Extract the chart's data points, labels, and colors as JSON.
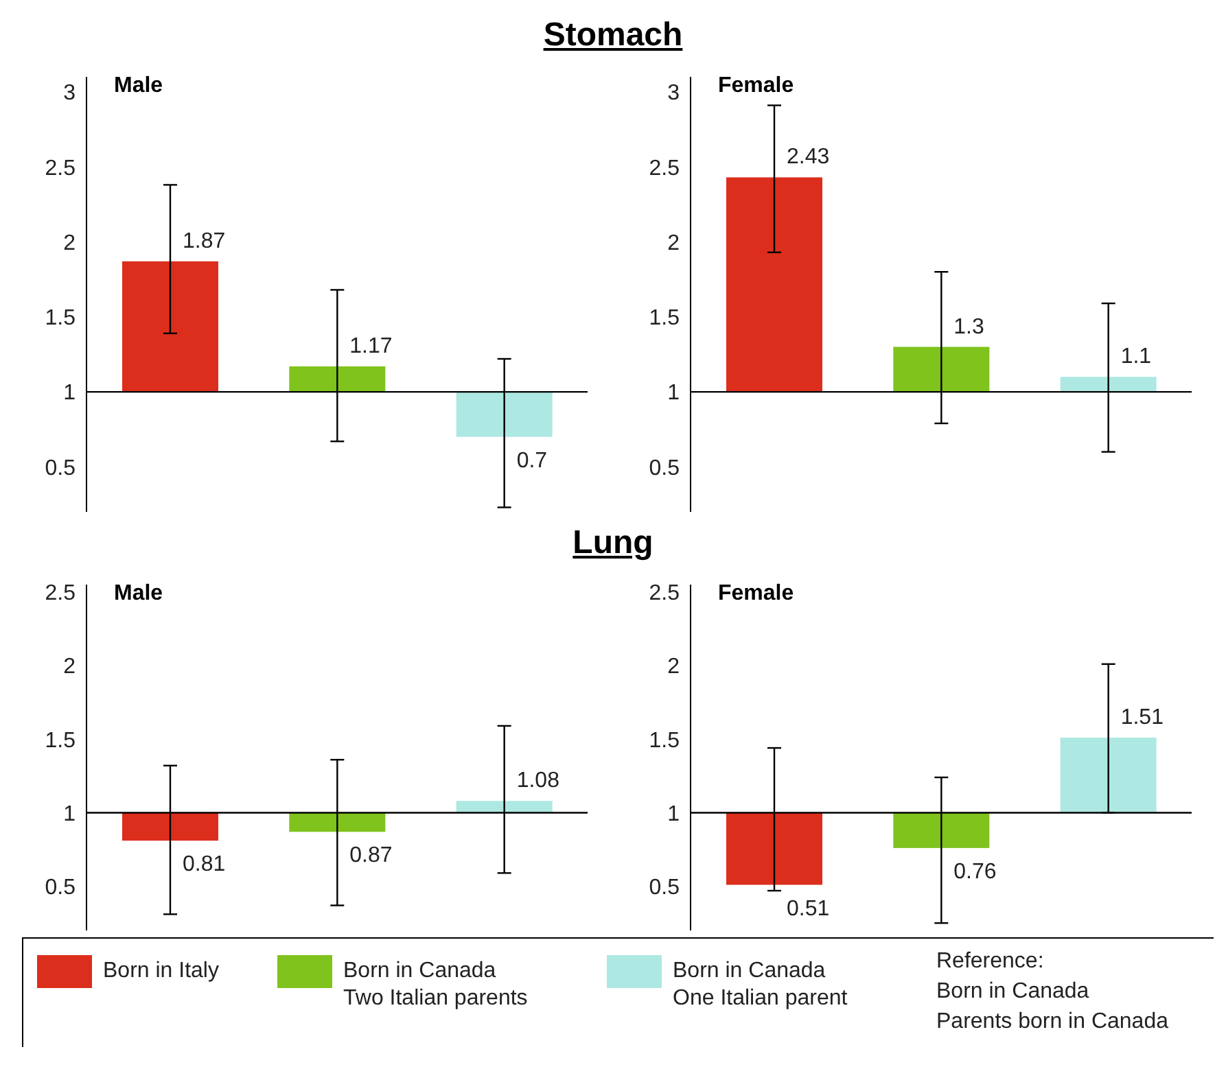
{
  "chart_data": [
    {
      "type": "bar",
      "title": "Stomach",
      "subtitle": "Male",
      "categories": [
        null,
        null,
        null
      ],
      "ylim": [
        0.2,
        3.1
      ],
      "yticks": [
        0.5,
        1,
        1.5,
        2,
        2.5,
        3
      ],
      "ref_lines": [
        {
          "axis": "y",
          "value": 1
        }
      ],
      "series": [
        {
          "color": "#dc2e1c",
          "base": [
            1,
            null,
            null
          ],
          "values": [
            0.87,
            null,
            null
          ],
          "value_labels": [
            "1.87",
            null,
            null
          ],
          "errors": [
            [
              1.39,
              2.38
            ],
            null,
            null
          ]
        },
        {
          "color": "#7fc31c",
          "base": [
            null,
            1,
            null
          ],
          "values": [
            null,
            0.17,
            null
          ],
          "value_labels": [
            null,
            "1.17",
            null
          ],
          "errors": [
            null,
            [
              0.67,
              1.68
            ],
            null
          ]
        },
        {
          "color": "#aee8e2",
          "base": [
            null,
            null,
            1
          ],
          "values": [
            null,
            null,
            -0.3
          ],
          "value_labels": [
            null,
            null,
            "0.7"
          ],
          "errors": [
            null,
            null,
            [
              0.23,
              1.22
            ]
          ]
        }
      ]
    },
    {
      "type": "bar",
      "subtitle": "Female",
      "categories": [
        null,
        null,
        null
      ],
      "ylim": [
        0.2,
        3.1
      ],
      "yticks": [
        0.5,
        1,
        1.5,
        2,
        2.5,
        3
      ],
      "ref_lines": [
        {
          "axis": "y",
          "value": 1
        }
      ],
      "series": [
        {
          "color": "#dc2e1c",
          "base": [
            1,
            null,
            null
          ],
          "values": [
            1.43,
            null,
            null
          ],
          "value_labels": [
            "2.43",
            null,
            null
          ],
          "errors": [
            [
              1.93,
              2.91
            ],
            null,
            null
          ]
        },
        {
          "color": "#7fc31c",
          "base": [
            null,
            1,
            null
          ],
          "values": [
            null,
            0.3,
            null
          ],
          "value_labels": [
            null,
            "1.3",
            null
          ],
          "errors": [
            null,
            [
              0.79,
              1.8
            ],
            null
          ]
        },
        {
          "color": "#aee8e2",
          "base": [
            null,
            null,
            1
          ],
          "values": [
            null,
            null,
            0.1
          ],
          "value_labels": [
            null,
            null,
            "1.1"
          ],
          "errors": [
            null,
            null,
            [
              0.6,
              1.59
            ]
          ]
        }
      ]
    },
    {
      "type": "bar",
      "title": "Lung",
      "subtitle": "Male",
      "categories": [
        null,
        null,
        null
      ],
      "ylim": [
        0.2,
        2.55
      ],
      "yticks": [
        0.5,
        1,
        1.5,
        2,
        2.5
      ],
      "ref_lines": [
        {
          "axis": "y",
          "value": 1
        }
      ],
      "series": [
        {
          "color": "#dc2e1c",
          "base": [
            1,
            null,
            null
          ],
          "values": [
            -0.19,
            null,
            null
          ],
          "value_labels": [
            "0.81",
            null,
            null
          ],
          "errors": [
            [
              0.31,
              1.32
            ],
            null,
            null
          ]
        },
        {
          "color": "#7fc31c",
          "base": [
            null,
            1,
            null
          ],
          "values": [
            null,
            -0.13,
            null
          ],
          "value_labels": [
            null,
            "0.87",
            null
          ],
          "errors": [
            null,
            [
              0.37,
              1.36
            ],
            null
          ]
        },
        {
          "color": "#aee8e2",
          "base": [
            null,
            null,
            1
          ],
          "values": [
            null,
            null,
            0.08
          ],
          "value_labels": [
            null,
            null,
            "1.08"
          ],
          "errors": [
            null,
            null,
            [
              0.59,
              1.59
            ]
          ]
        }
      ]
    },
    {
      "type": "bar",
      "subtitle": "Female",
      "categories": [
        null,
        null,
        null
      ],
      "ylim": [
        0.2,
        2.55
      ],
      "yticks": [
        0.5,
        1,
        1.5,
        2,
        2.5
      ],
      "ref_lines": [
        {
          "axis": "y",
          "value": 1
        }
      ],
      "legend": "bottom",
      "annotations": [
        "Reference:\nBorn in Canada\nParents born in Canada"
      ],
      "series": [
        {
          "name": "Born in Italy",
          "color": "#dc2e1c",
          "base": [
            1,
            null,
            null
          ],
          "values": [
            -0.49,
            null,
            null
          ],
          "value_labels": [
            "0.51",
            null,
            null
          ],
          "errors": [
            [
              0.47,
              1.44
            ],
            null,
            null
          ]
        },
        {
          "name": "Born in Canada\nTwo Italian parents",
          "color": "#7fc31c",
          "base": [
            null,
            1,
            null
          ],
          "values": [
            null,
            -0.24,
            null
          ],
          "value_labels": [
            null,
            "0.76",
            null
          ],
          "errors": [
            null,
            [
              0.25,
              1.24
            ],
            null
          ]
        },
        {
          "name": "Born in Canada\nOne Italian parent",
          "color": "#aee8e2",
          "base": [
            null,
            null,
            1
          ],
          "values": [
            null,
            null,
            0.51
          ],
          "value_labels": [
            null,
            null,
            "1.51"
          ],
          "errors": [
            null,
            null,
            [
              1.0,
              2.01
            ]
          ]
        }
      ]
    }
  ]
}
